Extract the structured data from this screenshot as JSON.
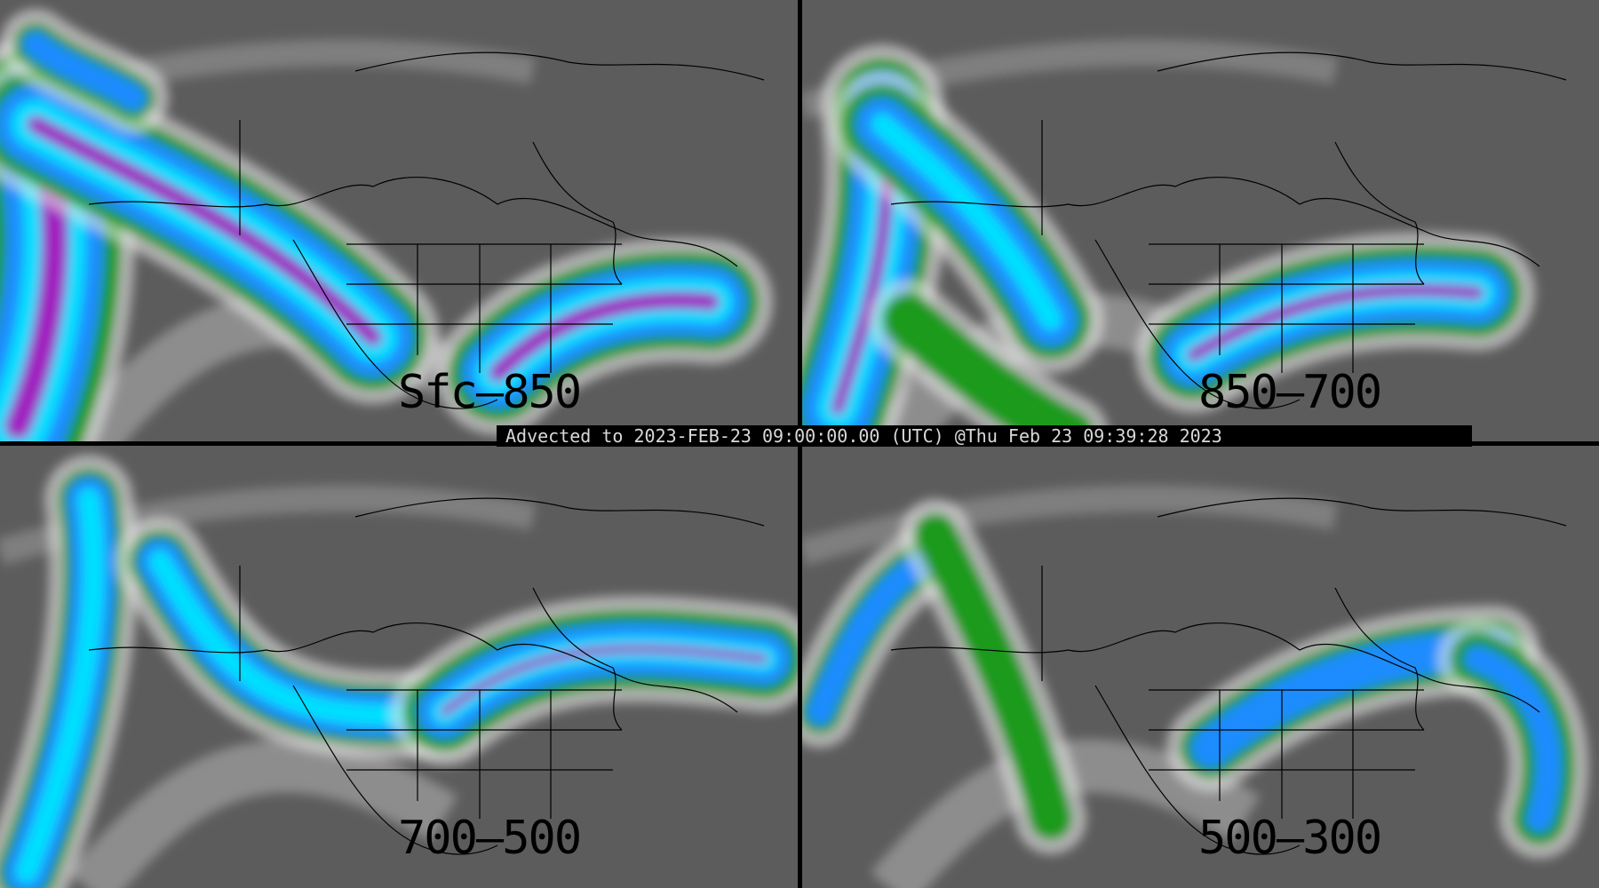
{
  "banner": {
    "text": "Advected to 2023-FEB-23 09:00:00.00 (UTC) @Thu Feb 23 09:39:28 2023"
  },
  "panels": [
    {
      "label": "Sfc–850"
    },
    {
      "label": "850–700"
    },
    {
      "label": "700–500"
    },
    {
      "label": "500–300"
    }
  ],
  "colors": {
    "background": "#5c5c5c",
    "low": "#e8e8e8",
    "green": "#1a9a1a",
    "blue": "#1a8cff",
    "cyan": "#00e0ff",
    "purple": "#a020c0",
    "red": "#c00000",
    "outline": "#000000"
  }
}
